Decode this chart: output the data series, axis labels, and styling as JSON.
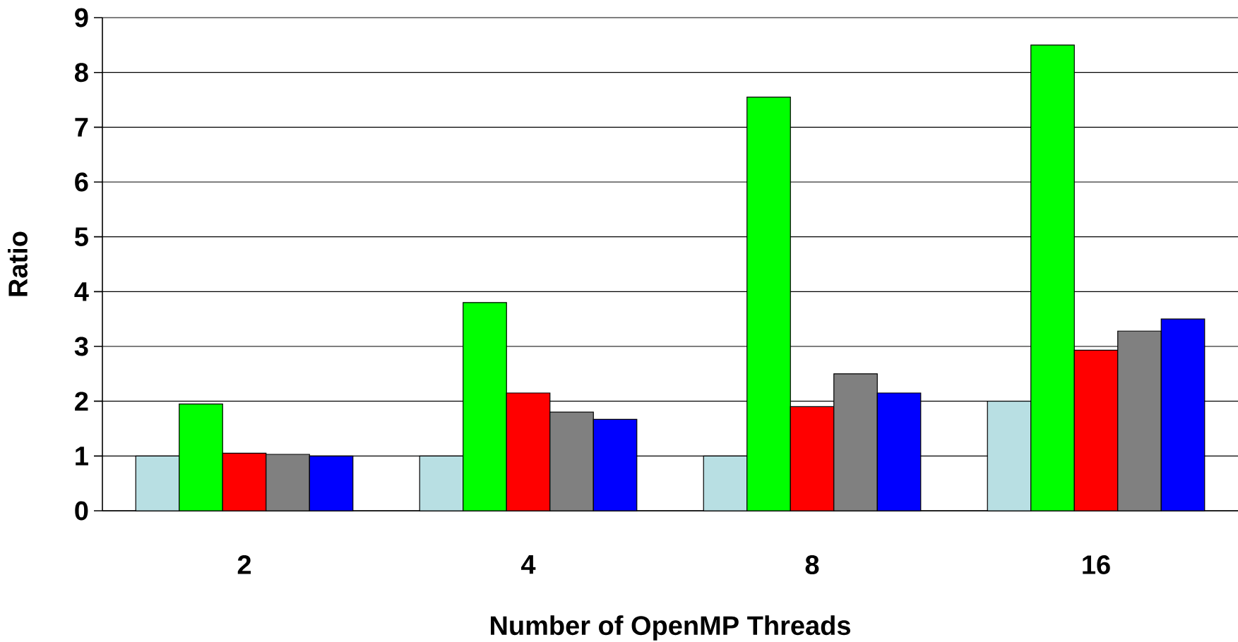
{
  "chart_data": {
    "type": "bar",
    "xlabel": "Number of OpenMP Threads",
    "ylabel": "Ratio",
    "categories": [
      "2",
      "4",
      "8",
      "16"
    ],
    "series": [
      {
        "color": "#b8dfe3",
        "values": [
          1,
          1,
          1,
          2
        ]
      },
      {
        "color": "#00ff00",
        "values": [
          1.95,
          3.8,
          7.55,
          8.5
        ]
      },
      {
        "color": "#ff0000",
        "values": [
          1.05,
          2.15,
          1.9,
          2.93
        ]
      },
      {
        "color": "#808080",
        "values": [
          1.03,
          1.8,
          2.5,
          3.28
        ]
      },
      {
        "color": "#0000ff",
        "values": [
          1.0,
          1.67,
          2.15,
          3.5
        ]
      }
    ],
    "ylim": [
      0,
      9
    ],
    "yticks": [
      0,
      1,
      2,
      3,
      4,
      5,
      6,
      7,
      8,
      9
    ],
    "grid": "y"
  }
}
